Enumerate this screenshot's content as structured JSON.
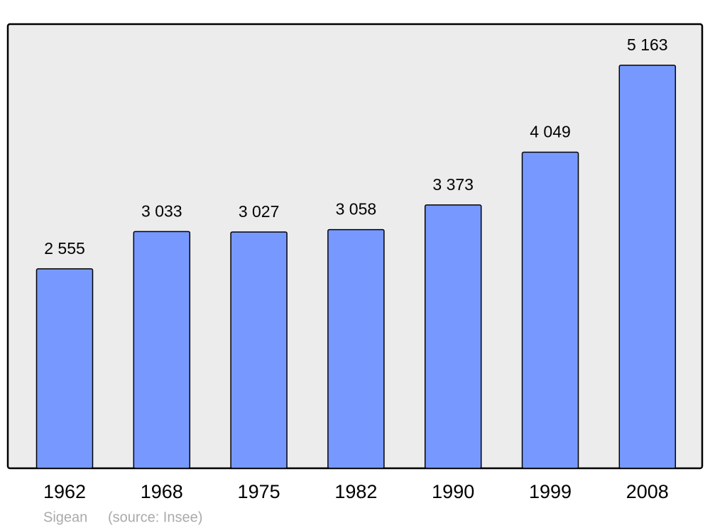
{
  "chart_data": {
    "type": "bar",
    "categories": [
      "1962",
      "1968",
      "1975",
      "1982",
      "1990",
      "1999",
      "2008"
    ],
    "values": [
      2555,
      3033,
      3027,
      3058,
      3373,
      4049,
      5163
    ],
    "value_labels": [
      "2 555",
      "3 033",
      "3 027",
      "3 058",
      "3 373",
      "4 049",
      "5 163"
    ],
    "color": "#7799ff",
    "ylim": [
      0,
      5690
    ],
    "place": "Sigean",
    "source": "(source: Insee)"
  }
}
